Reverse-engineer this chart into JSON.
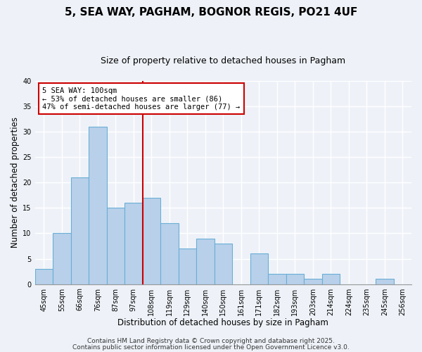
{
  "title1": "5, SEA WAY, PAGHAM, BOGNOR REGIS, PO21 4UF",
  "title2": "Size of property relative to detached houses in Pagham",
  "xlabel": "Distribution of detached houses by size in Pagham",
  "ylabel": "Number of detached properties",
  "categories": [
    "45sqm",
    "55sqm",
    "66sqm",
    "76sqm",
    "87sqm",
    "97sqm",
    "108sqm",
    "119sqm",
    "129sqm",
    "140sqm",
    "150sqm",
    "161sqm",
    "171sqm",
    "182sqm",
    "193sqm",
    "203sqm",
    "214sqm",
    "224sqm",
    "235sqm",
    "245sqm",
    "256sqm"
  ],
  "values": [
    3,
    10,
    21,
    31,
    15,
    16,
    17,
    12,
    7,
    9,
    8,
    0,
    6,
    2,
    2,
    1,
    2,
    0,
    0,
    1,
    0
  ],
  "bar_color": "#b8d0ea",
  "bar_edge_color": "#6aaed6",
  "vline_x": 5.5,
  "vline_color": "#cc0000",
  "annotation_title": "5 SEA WAY: 100sqm",
  "annotation_line1": "← 53% of detached houses are smaller (86)",
  "annotation_line2": "47% of semi-detached houses are larger (77) →",
  "annotation_box_color": "#cc0000",
  "ylim": [
    0,
    40
  ],
  "yticks": [
    0,
    5,
    10,
    15,
    20,
    25,
    30,
    35,
    40
  ],
  "footer1": "Contains HM Land Registry data © Crown copyright and database right 2025.",
  "footer2": "Contains public sector information licensed under the Open Government Licence v3.0.",
  "bg_color": "#eef2f8",
  "grid_color": "#ffffff",
  "title_fontsize": 11,
  "subtitle_fontsize": 9,
  "axis_label_fontsize": 8.5,
  "tick_fontsize": 7,
  "footer_fontsize": 6.5,
  "annotation_fontsize": 7.5
}
